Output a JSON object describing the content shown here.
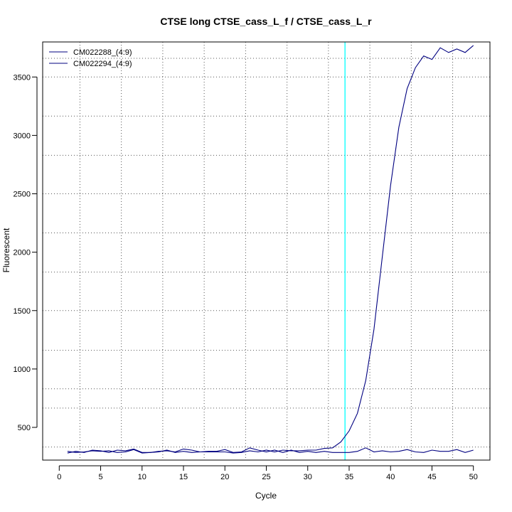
{
  "chart_data": {
    "type": "line",
    "title": "CTSE long CTSE_cass_L_f / CTSE_cass_L_r",
    "xlabel": "Cycle",
    "ylabel": "Fluorescent",
    "xlim": [
      -2,
      52
    ],
    "ylim": [
      220,
      3800
    ],
    "x_ticks": [
      0,
      5,
      10,
      15,
      20,
      25,
      30,
      35,
      40,
      45,
      50
    ],
    "y_ticks": [
      500,
      1000,
      1500,
      2000,
      2500,
      3000,
      3500
    ],
    "x_grid": [
      2.5,
      7.5,
      12.5,
      17.5,
      22.5,
      27.5,
      32.5,
      37.5,
      42.5,
      47.5
    ],
    "y_grid": [
      332,
      665,
      830,
      1160,
      1500,
      1830,
      2165,
      2500,
      2830,
      3165,
      3500,
      3660
    ],
    "grid": true,
    "legend_position": "top-left",
    "threshold": {
      "x": 34.5,
      "color": "#00ffff"
    },
    "x": [
      1,
      2,
      3,
      4,
      5,
      6,
      7,
      8,
      9,
      10,
      11,
      12,
      13,
      14,
      15,
      16,
      17,
      18,
      19,
      20,
      21,
      22,
      23,
      24,
      25,
      26,
      27,
      28,
      29,
      30,
      31,
      32,
      33,
      34,
      35,
      36,
      37,
      38,
      39,
      40,
      41,
      42,
      43,
      44,
      45,
      46,
      47,
      48,
      49,
      50
    ],
    "series": [
      {
        "name": "CM022288_(4:9)",
        "color": "#000080",
        "values": [
          280,
          295,
          285,
          305,
          300,
          285,
          305,
          300,
          315,
          285,
          285,
          295,
          300,
          290,
          315,
          305,
          290,
          290,
          290,
          290,
          280,
          285,
          300,
          290,
          305,
          290,
          305,
          300,
          300,
          305,
          305,
          320,
          325,
          375,
          470,
          620,
          900,
          1340,
          1960,
          2570,
          3070,
          3400,
          3580,
          3680,
          3650,
          3750,
          3710,
          3740,
          3710,
          3770
        ]
      },
      {
        "name": "CM022294_(4:9)",
        "color": "#000080",
        "values": [
          295,
          285,
          290,
          300,
          295,
          300,
          285,
          290,
          310,
          280,
          285,
          290,
          305,
          285,
          295,
          285,
          290,
          295,
          295,
          310,
          285,
          290,
          325,
          305,
          290,
          305,
          285,
          305,
          285,
          295,
          285,
          295,
          285,
          285,
          285,
          295,
          325,
          290,
          300,
          290,
          295,
          310,
          290,
          285,
          305,
          295,
          295,
          310,
          285,
          305
        ]
      }
    ]
  }
}
